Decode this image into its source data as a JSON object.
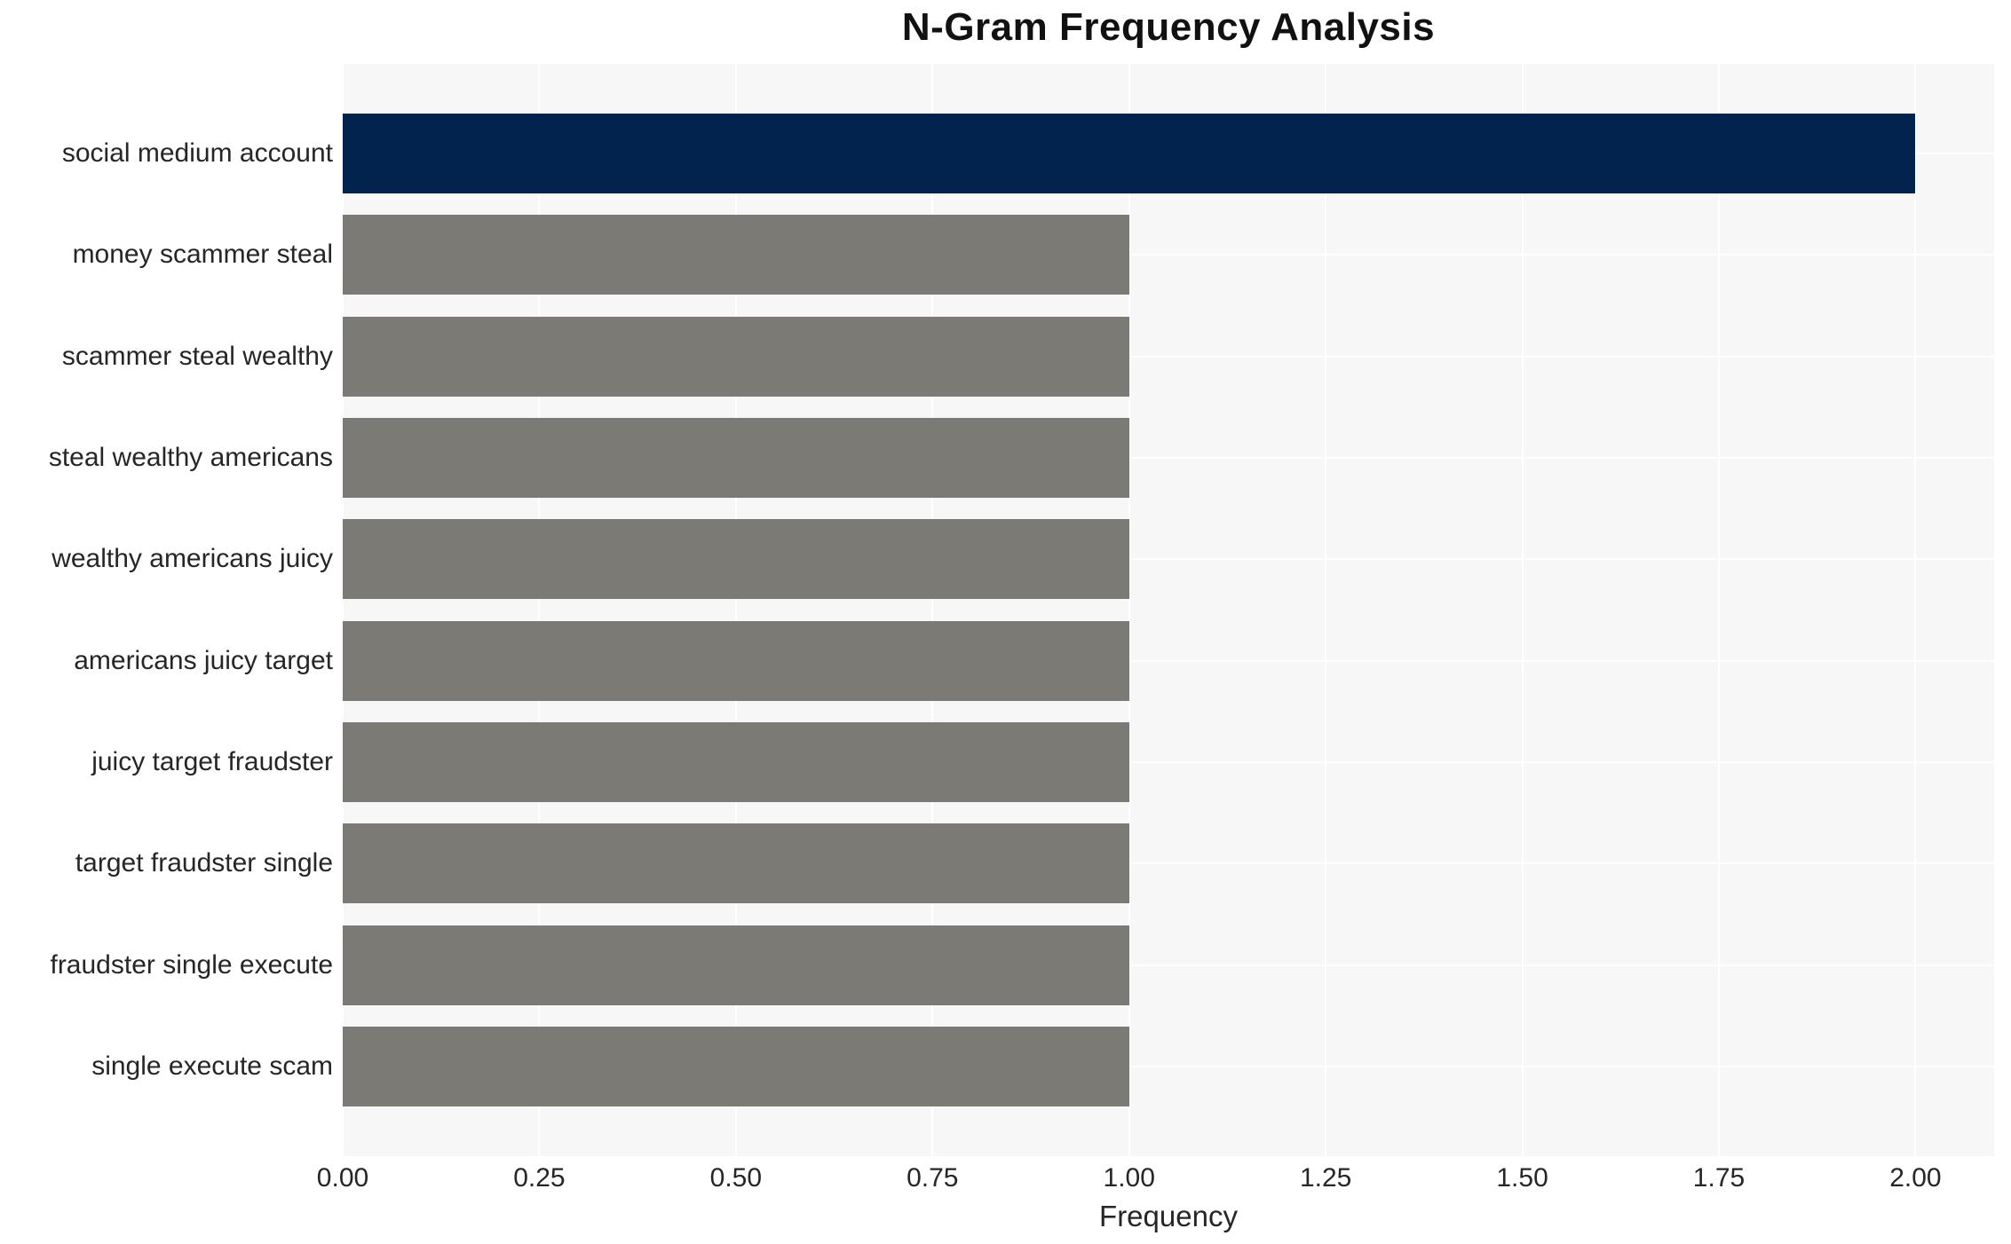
{
  "chart_data": {
    "type": "bar",
    "orientation": "horizontal",
    "title": "N-Gram Frequency Analysis",
    "xlabel": "Frequency",
    "ylabel": "",
    "categories": [
      "social medium account",
      "money scammer steal",
      "scammer steal wealthy",
      "steal wealthy americans",
      "wealthy americans juicy",
      "americans juicy target",
      "juicy target fraudster",
      "target fraudster single",
      "fraudster single execute",
      "single execute scam"
    ],
    "values": [
      2,
      1,
      1,
      1,
      1,
      1,
      1,
      1,
      1,
      1
    ],
    "xlim": [
      0,
      2.1
    ],
    "xtick_values": [
      0,
      0.25,
      0.5,
      0.75,
      1.0,
      1.25,
      1.5,
      1.75,
      2.0
    ],
    "xtick_labels": [
      "0.00",
      "0.25",
      "0.50",
      "0.75",
      "1.00",
      "1.25",
      "1.50",
      "1.75",
      "2.00"
    ],
    "grid": "on",
    "legend": "none",
    "colors": {
      "highlight_bar": "#02234e",
      "default_bar": "#7b7a75",
      "plot_background": "#f7f7f7",
      "gridline": "#ffffff",
      "text": "#262626",
      "title_text": "#111111"
    }
  }
}
